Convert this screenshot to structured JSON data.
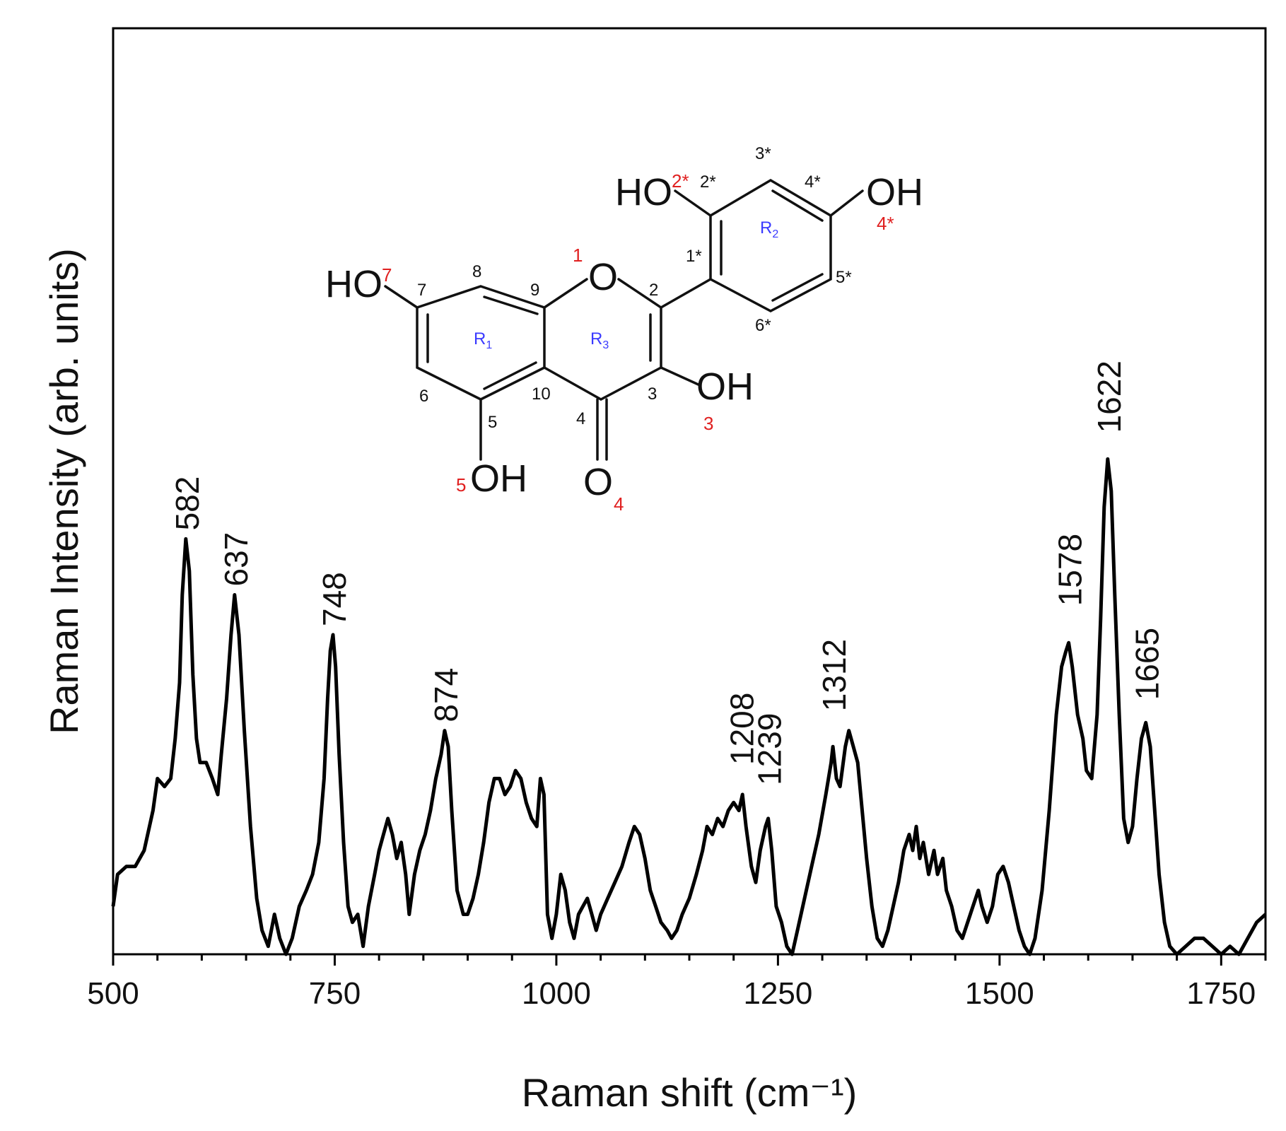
{
  "colors": {
    "line": "#000000",
    "atom_number": "#e02020",
    "ring_label": "#3a3aff"
  },
  "chart_data": {
    "type": "line",
    "xlabel": "Raman shift (cm⁻¹)",
    "ylabel": "Raman Intensity (arb. units)",
    "xlim": [
      500,
      1800
    ],
    "ylim": [
      0,
      1
    ],
    "y_ticks_shown": false,
    "grid": false,
    "x_ticks": [
      500,
      750,
      1000,
      1250,
      1500,
      1750
    ],
    "peak_labels": [
      {
        "x": 582,
        "label": "582"
      },
      {
        "x": 637,
        "label": "637"
      },
      {
        "x": 748,
        "label": "748"
      },
      {
        "x": 874,
        "label": "874"
      },
      {
        "x": 1208,
        "label": "1208"
      },
      {
        "x": 1239,
        "label": "1239"
      },
      {
        "x": 1312,
        "label": "1312"
      },
      {
        "x": 1578,
        "label": "1578"
      },
      {
        "x": 1622,
        "label": "1622"
      },
      {
        "x": 1665,
        "label": "1665"
      }
    ],
    "series": [
      {
        "points": [
          [
            500,
            0.06
          ],
          [
            505,
            0.1
          ],
          [
            515,
            0.11
          ],
          [
            525,
            0.11
          ],
          [
            535,
            0.13
          ],
          [
            545,
            0.18
          ],
          [
            550,
            0.22
          ],
          [
            558,
            0.21
          ],
          [
            565,
            0.22
          ],
          [
            570,
            0.27
          ],
          [
            575,
            0.34
          ],
          [
            578,
            0.45
          ],
          [
            582,
            0.52
          ],
          [
            586,
            0.48
          ],
          [
            590,
            0.35
          ],
          [
            594,
            0.27
          ],
          [
            598,
            0.24
          ],
          [
            605,
            0.24
          ],
          [
            612,
            0.22
          ],
          [
            618,
            0.2
          ],
          [
            622,
            0.25
          ],
          [
            628,
            0.32
          ],
          [
            633,
            0.4
          ],
          [
            637,
            0.45
          ],
          [
            642,
            0.4
          ],
          [
            648,
            0.28
          ],
          [
            655,
            0.16
          ],
          [
            662,
            0.07
          ],
          [
            668,
            0.03
          ],
          [
            675,
            0.01
          ],
          [
            682,
            0.05
          ],
          [
            688,
            0.02
          ],
          [
            695,
            0.0
          ],
          [
            702,
            0.02
          ],
          [
            710,
            0.06
          ],
          [
            718,
            0.08
          ],
          [
            725,
            0.1
          ],
          [
            732,
            0.14
          ],
          [
            738,
            0.22
          ],
          [
            742,
            0.32
          ],
          [
            745,
            0.38
          ],
          [
            748,
            0.4
          ],
          [
            751,
            0.36
          ],
          [
            755,
            0.25
          ],
          [
            760,
            0.14
          ],
          [
            765,
            0.06
          ],
          [
            770,
            0.04
          ],
          [
            776,
            0.05
          ],
          [
            782,
            0.01
          ],
          [
            788,
            0.06
          ],
          [
            795,
            0.1
          ],
          [
            800,
            0.13
          ],
          [
            805,
            0.15
          ],
          [
            810,
            0.17
          ],
          [
            815,
            0.15
          ],
          [
            820,
            0.12
          ],
          [
            825,
            0.14
          ],
          [
            830,
            0.1
          ],
          [
            834,
            0.05
          ],
          [
            840,
            0.1
          ],
          [
            846,
            0.13
          ],
          [
            852,
            0.15
          ],
          [
            858,
            0.18
          ],
          [
            864,
            0.22
          ],
          [
            870,
            0.25
          ],
          [
            874,
            0.28
          ],
          [
            878,
            0.26
          ],
          [
            882,
            0.18
          ],
          [
            888,
            0.08
          ],
          [
            895,
            0.05
          ],
          [
            900,
            0.05
          ],
          [
            906,
            0.07
          ],
          [
            912,
            0.1
          ],
          [
            918,
            0.14
          ],
          [
            924,
            0.19
          ],
          [
            930,
            0.22
          ],
          [
            936,
            0.22
          ],
          [
            942,
            0.2
          ],
          [
            948,
            0.21
          ],
          [
            954,
            0.23
          ],
          [
            960,
            0.22
          ],
          [
            966,
            0.19
          ],
          [
            972,
            0.17
          ],
          [
            978,
            0.16
          ],
          [
            982,
            0.22
          ],
          [
            986,
            0.2
          ],
          [
            990,
            0.05
          ],
          [
            995,
            0.02
          ],
          [
            1000,
            0.05
          ],
          [
            1005,
            0.1
          ],
          [
            1010,
            0.08
          ],
          [
            1015,
            0.04
          ],
          [
            1020,
            0.02
          ],
          [
            1025,
            0.05
          ],
          [
            1030,
            0.06
          ],
          [
            1035,
            0.07
          ],
          [
            1040,
            0.05
          ],
          [
            1045,
            0.03
          ],
          [
            1050,
            0.05
          ],
          [
            1058,
            0.07
          ],
          [
            1066,
            0.09
          ],
          [
            1074,
            0.11
          ],
          [
            1082,
            0.14
          ],
          [
            1088,
            0.16
          ],
          [
            1094,
            0.15
          ],
          [
            1100,
            0.12
          ],
          [
            1106,
            0.08
          ],
          [
            1112,
            0.06
          ],
          [
            1118,
            0.04
          ],
          [
            1125,
            0.03
          ],
          [
            1130,
            0.02
          ],
          [
            1136,
            0.03
          ],
          [
            1142,
            0.05
          ],
          [
            1150,
            0.07
          ],
          [
            1158,
            0.1
          ],
          [
            1165,
            0.13
          ],
          [
            1170,
            0.16
          ],
          [
            1176,
            0.15
          ],
          [
            1182,
            0.17
          ],
          [
            1188,
            0.16
          ],
          [
            1194,
            0.18
          ],
          [
            1200,
            0.19
          ],
          [
            1206,
            0.18
          ],
          [
            1210,
            0.2
          ],
          [
            1214,
            0.16
          ],
          [
            1220,
            0.11
          ],
          [
            1225,
            0.09
          ],
          [
            1230,
            0.13
          ],
          [
            1236,
            0.16
          ],
          [
            1239,
            0.17
          ],
          [
            1243,
            0.13
          ],
          [
            1248,
            0.06
          ],
          [
            1254,
            0.04
          ],
          [
            1260,
            0.01
          ],
          [
            1266,
            0.0
          ],
          [
            1272,
            0.03
          ],
          [
            1280,
            0.07
          ],
          [
            1288,
            0.11
          ],
          [
            1296,
            0.15
          ],
          [
            1304,
            0.2
          ],
          [
            1310,
            0.24
          ],
          [
            1312,
            0.26
          ],
          [
            1316,
            0.22
          ],
          [
            1320,
            0.21
          ],
          [
            1326,
            0.26
          ],
          [
            1330,
            0.28
          ],
          [
            1335,
            0.26
          ],
          [
            1340,
            0.24
          ],
          [
            1345,
            0.18
          ],
          [
            1350,
            0.12
          ],
          [
            1356,
            0.06
          ],
          [
            1362,
            0.02
          ],
          [
            1368,
            0.01
          ],
          [
            1374,
            0.03
          ],
          [
            1380,
            0.06
          ],
          [
            1386,
            0.09
          ],
          [
            1392,
            0.13
          ],
          [
            1398,
            0.15
          ],
          [
            1402,
            0.13
          ],
          [
            1406,
            0.16
          ],
          [
            1410,
            0.12
          ],
          [
            1414,
            0.14
          ],
          [
            1420,
            0.1
          ],
          [
            1426,
            0.13
          ],
          [
            1430,
            0.1
          ],
          [
            1436,
            0.12
          ],
          [
            1440,
            0.08
          ],
          [
            1446,
            0.06
          ],
          [
            1452,
            0.03
          ],
          [
            1458,
            0.02
          ],
          [
            1464,
            0.04
          ],
          [
            1470,
            0.06
          ],
          [
            1476,
            0.08
          ],
          [
            1480,
            0.06
          ],
          [
            1486,
            0.04
          ],
          [
            1492,
            0.06
          ],
          [
            1498,
            0.1
          ],
          [
            1504,
            0.11
          ],
          [
            1510,
            0.09
          ],
          [
            1516,
            0.06
          ],
          [
            1522,
            0.03
          ],
          [
            1528,
            0.01
          ],
          [
            1534,
            0.0
          ],
          [
            1540,
            0.02
          ],
          [
            1548,
            0.08
          ],
          [
            1556,
            0.18
          ],
          [
            1564,
            0.3
          ],
          [
            1570,
            0.36
          ],
          [
            1575,
            0.38
          ],
          [
            1578,
            0.39
          ],
          [
            1582,
            0.36
          ],
          [
            1588,
            0.3
          ],
          [
            1594,
            0.27
          ],
          [
            1598,
            0.23
          ],
          [
            1604,
            0.22
          ],
          [
            1610,
            0.3
          ],
          [
            1614,
            0.42
          ],
          [
            1618,
            0.56
          ],
          [
            1622,
            0.62
          ],
          [
            1626,
            0.58
          ],
          [
            1630,
            0.45
          ],
          [
            1635,
            0.3
          ],
          [
            1640,
            0.17
          ],
          [
            1645,
            0.14
          ],
          [
            1650,
            0.16
          ],
          [
            1655,
            0.22
          ],
          [
            1660,
            0.27
          ],
          [
            1665,
            0.29
          ],
          [
            1670,
            0.26
          ],
          [
            1675,
            0.18
          ],
          [
            1680,
            0.1
          ],
          [
            1686,
            0.04
          ],
          [
            1692,
            0.01
          ],
          [
            1700,
            0.0
          ],
          [
            1710,
            0.01
          ],
          [
            1720,
            0.02
          ],
          [
            1730,
            0.02
          ],
          [
            1740,
            0.01
          ],
          [
            1750,
            0.0
          ],
          [
            1760,
            0.01
          ],
          [
            1770,
            0.0
          ],
          [
            1780,
            0.02
          ],
          [
            1790,
            0.04
          ],
          [
            1800,
            0.05
          ]
        ]
      }
    ]
  },
  "molecule": {
    "atoms": {
      "ho7": "HO",
      "num7_red": "7",
      "o1": "O",
      "num1_red": "1",
      "ho2s": "HO",
      "num2s_red": "2*",
      "oh4s": "OH",
      "num4s_red": "4*",
      "oh3": "OH",
      "num3_red": "3",
      "oh5": "OH",
      "num5_red": "5",
      "o4": "O",
      "num4_red": "4"
    },
    "position_labels": {
      "p1s": "1*",
      "p2s": "2*",
      "p3s": "3*",
      "p4s": "4*",
      "p5s": "5*",
      "p6s": "6*",
      "p2": "2",
      "p3": "3",
      "p4": "4",
      "p5": "5",
      "p6": "6",
      "p7": "7",
      "p8": "8",
      "p9": "9",
      "p10": "10"
    },
    "ring_labels": {
      "r1": "R",
      "r1_sub": "1",
      "r2": "R",
      "r2_sub": "2",
      "r3": "R",
      "r3_sub": "3"
    }
  }
}
